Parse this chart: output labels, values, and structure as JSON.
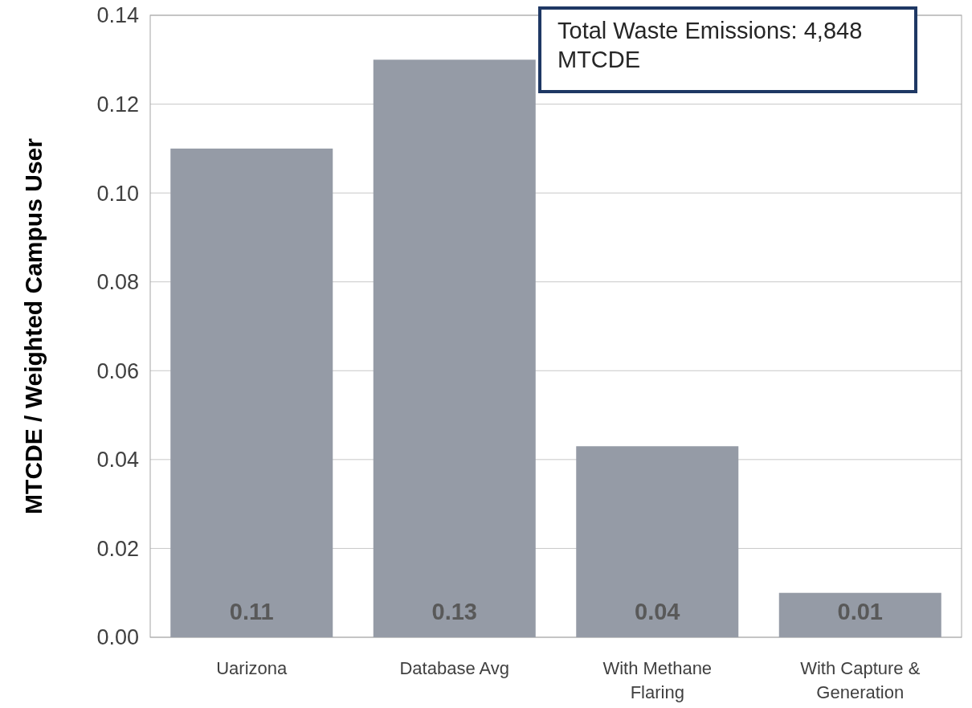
{
  "chart_data": {
    "type": "bar",
    "ylabel": "MTCDE / Weighted Campus User",
    "categories": [
      "Uarizona",
      "Database Avg",
      "With Methane Flaring",
      "With Capture & Generation"
    ],
    "values": [
      0.11,
      0.13,
      0.043,
      0.01
    ],
    "value_labels": [
      "0.11",
      "0.13",
      "0.04",
      "0.01"
    ],
    "color": "#959ba6",
    "ylim": [
      0,
      0.14
    ],
    "yticks": [
      {
        "value": 0,
        "label": "0.00"
      },
      {
        "value": 0.02,
        "label": "0.02"
      },
      {
        "value": 0.04,
        "label": "0.04"
      },
      {
        "value": 0.06,
        "label": "0.06"
      },
      {
        "value": 0.08,
        "label": "0.08"
      },
      {
        "value": 0.1,
        "label": "0.10"
      },
      {
        "value": 0.12,
        "label": "0.12"
      },
      {
        "value": 0.14,
        "label": "0.14"
      }
    ],
    "grid": "y",
    "annotations": [
      "Total Waste Emissions: 4,848 MTCDE"
    ]
  }
}
